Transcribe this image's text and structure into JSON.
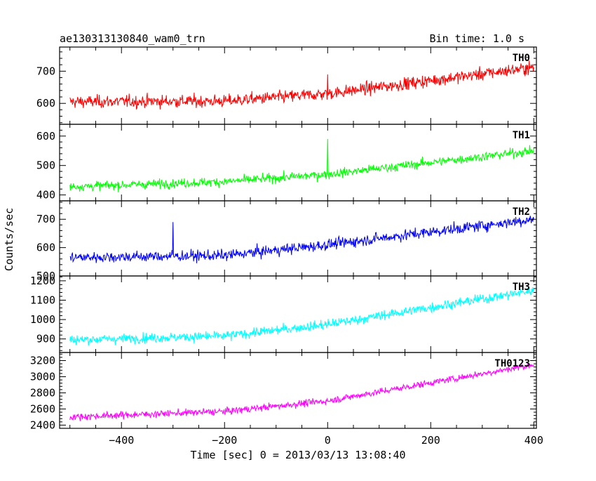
{
  "header": {
    "object_name": "ae130313130840_wam0_trn",
    "bin_time": "Bin time: 1.0 s"
  },
  "chart_data": {
    "type": "line",
    "title": "ae130313130840_wam0_trn",
    "xlabel": "Time [sec] 0 = 2013/03/13 13:08:40",
    "ylabel": "Counts/sec",
    "xlim": [
      -520,
      405
    ],
    "x_ticks": [
      -400,
      -200,
      0,
      200,
      400
    ],
    "x_tick_labels": [
      "−400",
      "−200",
      "0",
      "200",
      "400"
    ],
    "x_start": -500,
    "x_end": 400,
    "bin_time": 1.0,
    "grid": false,
    "panels": [
      {
        "name": "TH0",
        "color": "#ff0000",
        "ylim": [
          535,
          775
        ],
        "y_ticks": [
          600,
          700
        ],
        "trend": [
          [
            -500,
            605
          ],
          [
            -200,
            607
          ],
          [
            0,
            630
          ],
          [
            400,
            712
          ]
        ],
        "noise": 25,
        "spikes": [
          [
            0,
            690
          ]
        ]
      },
      {
        "name": "TH1",
        "color": "#00ff00",
        "ylim": [
          380,
          640
        ],
        "y_ticks": [
          400,
          500,
          600
        ],
        "trend": [
          [
            -500,
            428
          ],
          [
            -200,
            445
          ],
          [
            0,
            470
          ],
          [
            400,
            550
          ]
        ],
        "noise": 20,
        "spikes": [
          [
            0,
            590
          ]
        ]
      },
      {
        "name": "TH2",
        "color": "#0000ff",
        "ylim": [
          500,
          765
        ],
        "y_ticks": [
          500,
          600,
          700
        ],
        "trend": [
          [
            -500,
            565
          ],
          [
            -200,
            572
          ],
          [
            0,
            610
          ],
          [
            400,
            700
          ]
        ],
        "noise": 25,
        "spikes": [
          [
            -300,
            690
          ]
        ]
      },
      {
        "name": "TH3",
        "color": "#00ffff",
        "ylim": [
          830,
          1225
        ],
        "y_ticks": [
          900,
          1000,
          1100,
          1200
        ],
        "trend": [
          [
            -500,
            895
          ],
          [
            -200,
            915
          ],
          [
            0,
            975
          ],
          [
            400,
            1150
          ]
        ],
        "noise": 32,
        "spikes": []
      },
      {
        "name": "TH0123",
        "color": "#ff00ff",
        "ylim": [
          2360,
          3300
        ],
        "y_ticks": [
          2400,
          2600,
          2800,
          3000,
          3200
        ],
        "trend": [
          [
            -500,
            2500
          ],
          [
            -200,
            2570
          ],
          [
            0,
            2700
          ],
          [
            400,
            3150
          ]
        ],
        "noise": 55,
        "spikes": []
      }
    ]
  }
}
